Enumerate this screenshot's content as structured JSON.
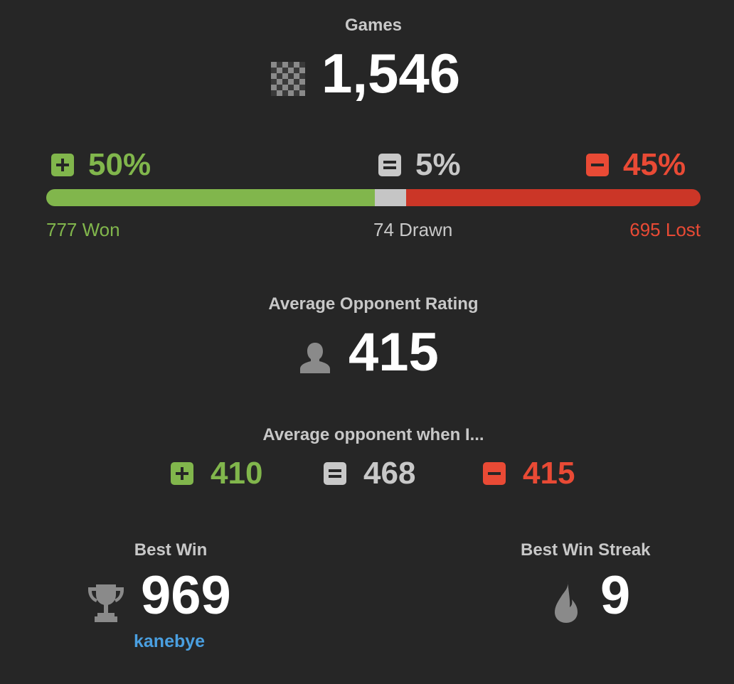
{
  "games": {
    "label": "Games",
    "value": "1,546",
    "icon": "checkered-board-icon"
  },
  "results": {
    "win": {
      "pct": "50%",
      "count": "777 Won",
      "fraction": 0.5026,
      "color": "#81b64c",
      "icon": "plus-square-icon"
    },
    "draw": {
      "pct": "5%",
      "count": "74 Drawn",
      "fraction": 0.0479,
      "color": "#c8c8c8",
      "icon": "equals-square-icon"
    },
    "loss": {
      "pct": "45%",
      "count": "695 Lost",
      "fraction": 0.4495,
      "color": "#e94a35",
      "icon": "minus-square-icon"
    }
  },
  "avg_rating": {
    "label": "Average Opponent Rating",
    "value": "415",
    "icon": "person-icon"
  },
  "avg_when": {
    "label": "Average opponent when I...",
    "win": "410",
    "draw": "468",
    "loss": "415"
  },
  "best_win": {
    "label": "Best Win",
    "value": "969",
    "user": "kanebye",
    "icon": "trophy-icon"
  },
  "best_streak": {
    "label": "Best Win Streak",
    "value": "9",
    "icon": "flame-icon"
  }
}
